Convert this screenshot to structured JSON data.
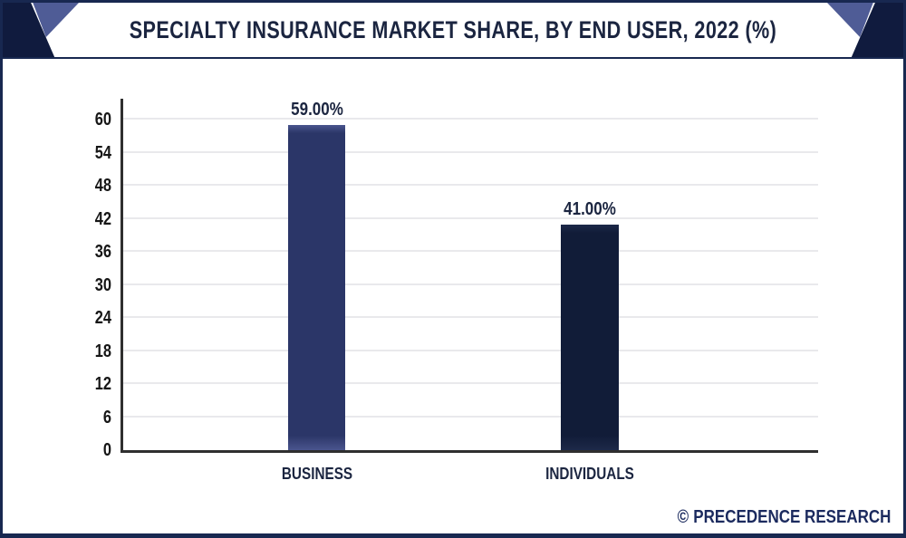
{
  "header": {
    "title": "SPECIALTY INSURANCE MARKET SHARE, BY END USER, 2022 (%)"
  },
  "watermark": {
    "symbol": "©",
    "text": "PRECEDENCE RESEARCH"
  },
  "colors": {
    "frame_border": "#182850",
    "header_dark": "#101b3e",
    "header_light": "#4f5c96",
    "title_text": "#1b2540",
    "axis_line": "#2f2f2f",
    "gridline": "#e9e9ec",
    "tick_text": "#161616",
    "label_text": "#1b2540",
    "watermark_text": "#1b2a5e",
    "bar_business": "#2b3668",
    "bar_business_highlight": "#4a558e",
    "bar_individuals": "#111c38",
    "bar_individuals_highlight": "#1d2949"
  },
  "chart_data": {
    "type": "bar",
    "title": "Specialty Insurance Market Share, By End User, 2022 (%)",
    "categories": [
      "BUSINESS",
      "INDIVIDUALS"
    ],
    "values": [
      59,
      41
    ],
    "value_labels": [
      "59.00%",
      "41.00%"
    ],
    "series": [
      {
        "name": "BUSINESS",
        "value": 59,
        "label": "59.00%",
        "color": "#2b3668",
        "highlight": "#4a558e"
      },
      {
        "name": "INDIVIDUALS",
        "value": 41,
        "label": "41.00%",
        "color": "#111c38",
        "highlight": "#1d2949"
      }
    ],
    "xlabel": "",
    "ylabel": "",
    "ylim": [
      0,
      60
    ],
    "yticks": [
      0,
      6,
      12,
      18,
      24,
      30,
      36,
      42,
      48,
      54,
      60
    ],
    "grid": true,
    "legend": false
  }
}
